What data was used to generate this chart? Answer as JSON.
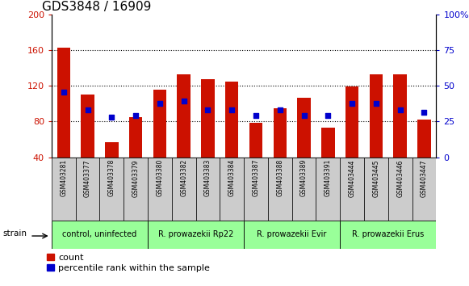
{
  "title": "GDS3848 / 16909",
  "samples": [
    "GSM403281",
    "GSM403377",
    "GSM403378",
    "GSM403379",
    "GSM403380",
    "GSM403382",
    "GSM403383",
    "GSM403384",
    "GSM403387",
    "GSM403388",
    "GSM403389",
    "GSM403391",
    "GSM403444",
    "GSM403445",
    "GSM403446",
    "GSM403447"
  ],
  "counts": [
    163,
    110,
    57,
    85,
    116,
    133,
    127,
    125,
    79,
    95,
    107,
    73,
    119,
    133,
    133,
    82
  ],
  "percentile_vals_on_left_axis": [
    113,
    93,
    85,
    87,
    100,
    103,
    93,
    93,
    87,
    93,
    87,
    87,
    100,
    100,
    93,
    90
  ],
  "groups": [
    {
      "label": "control, uninfected",
      "start": 0,
      "end": 4
    },
    {
      "label": "R. prowazekii Rp22",
      "start": 4,
      "end": 8
    },
    {
      "label": "R. prowazekii Evir",
      "start": 8,
      "end": 12
    },
    {
      "label": "R. prowazekii Erus",
      "start": 12,
      "end": 16
    }
  ],
  "ylim_left": [
    40,
    200
  ],
  "yticks_left": [
    40,
    80,
    120,
    160,
    200
  ],
  "yticks_right_labels": [
    "0",
    "25",
    "50",
    "75",
    "100%"
  ],
  "bar_color": "#cc1100",
  "dot_color": "#0000cc",
  "group_color": "#99ff99",
  "sample_box_color": "#cccccc",
  "title_fontsize": 11,
  "bar_width": 0.55
}
